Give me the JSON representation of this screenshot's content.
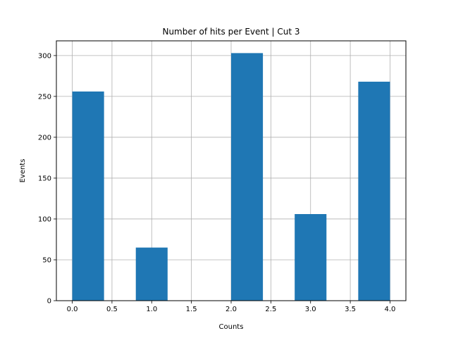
{
  "chart_data": {
    "type": "bar",
    "title": "Number of hits per Event | Cut 3",
    "xlabel": "Counts",
    "ylabel": "Events",
    "xlim": [
      -0.2,
      4.2
    ],
    "ylim": [
      0,
      318
    ],
    "xticks": [
      "0.0",
      "0.5",
      "1.0",
      "1.5",
      "2.0",
      "2.5",
      "3.0",
      "3.5",
      "4.0"
    ],
    "yticks": [
      "0",
      "50",
      "100",
      "150",
      "200",
      "250",
      "300"
    ],
    "grid": true,
    "bar_color": "#1f77b4",
    "bins": [
      {
        "x0": 0.0,
        "x1": 0.4,
        "value": 256
      },
      {
        "x0": 0.4,
        "x1": 0.8,
        "value": 0
      },
      {
        "x0": 0.8,
        "x1": 1.2,
        "value": 65
      },
      {
        "x0": 1.2,
        "x1": 1.6,
        "value": 0
      },
      {
        "x0": 1.6,
        "x1": 2.0,
        "value": 0
      },
      {
        "x0": 2.0,
        "x1": 2.4,
        "value": 303
      },
      {
        "x0": 2.4,
        "x1": 2.8,
        "value": 0
      },
      {
        "x0": 2.8,
        "x1": 3.2,
        "value": 106
      },
      {
        "x0": 3.2,
        "x1": 3.6,
        "value": 0
      },
      {
        "x0": 3.6,
        "x1": 4.0,
        "value": 268
      }
    ]
  }
}
